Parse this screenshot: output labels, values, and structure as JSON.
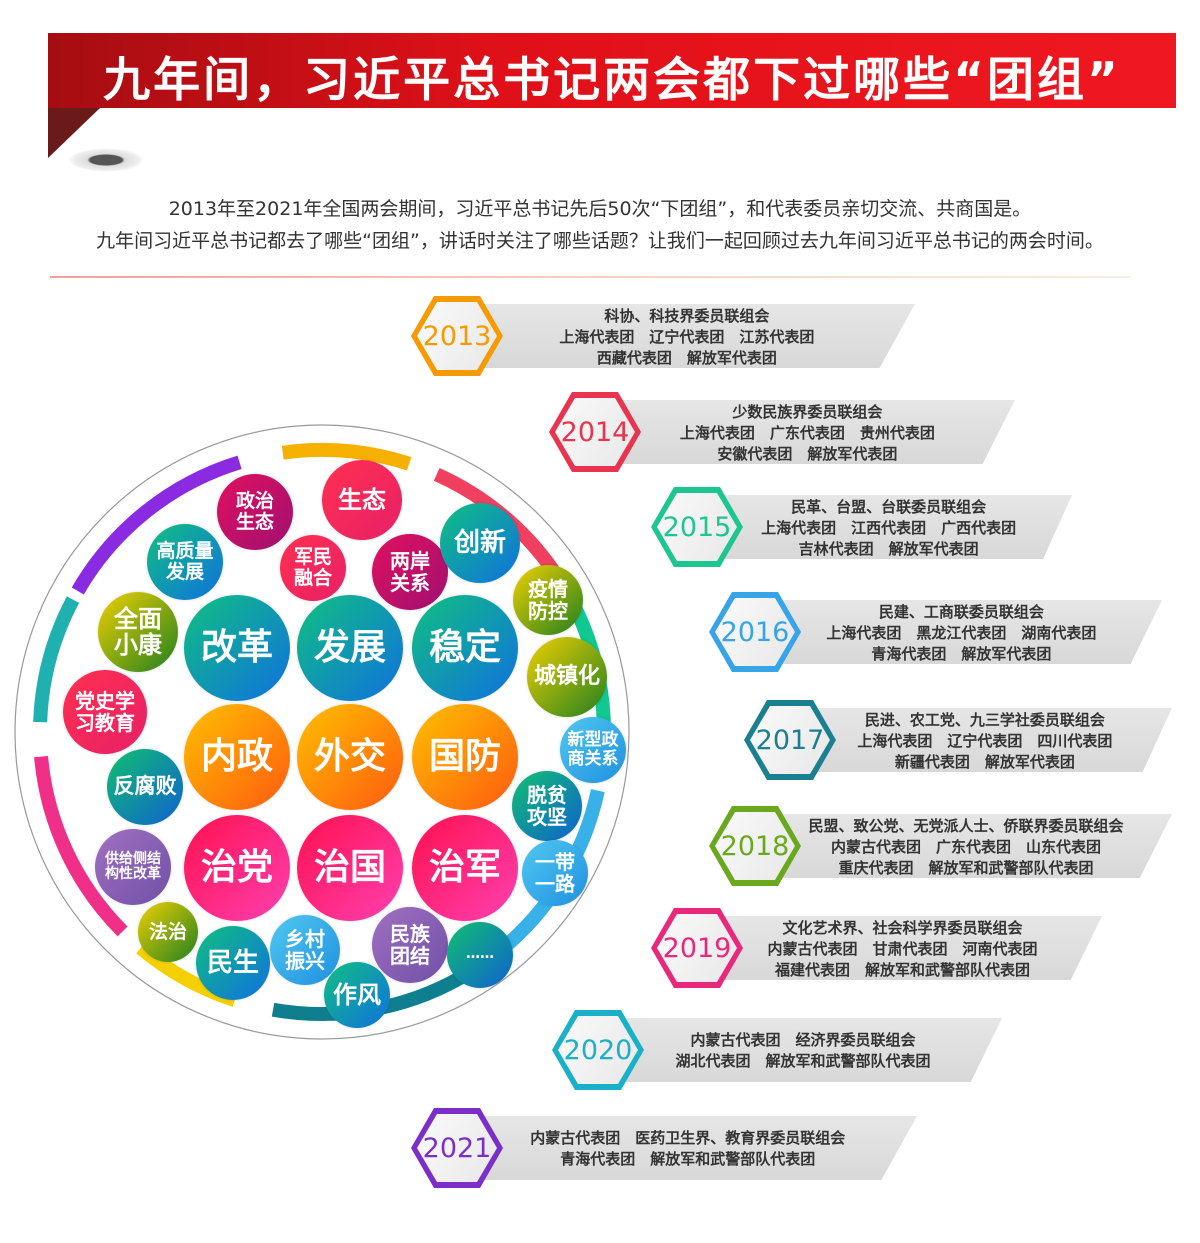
{
  "header": {
    "title": "九年间，习近平总书记两会都下过哪些“团组”"
  },
  "intro": {
    "line1": "2013年至2021年全国两会期间，习近平总书记先后50次“下团组”，和代表委员亲切交流、共商国是。",
    "line2": "九年间习近平总书记都去了哪些“团组”，讲话时关注了哪些话题？让我们一起回顾过去九年间习近平总书记的两会时间。"
  },
  "topics": [
    "政治\n生态",
    "生态",
    "高质量\n发展",
    "军民\n融合",
    "两岸\n关系",
    "创新",
    "疫情\n防控",
    "全面\n小康",
    "改革",
    "发展",
    "稳定",
    "城镇化",
    "党史学\n习教育",
    "新型政\n商关系",
    "内政",
    "外交",
    "国防",
    "反腐败",
    "脱贫\n攻坚",
    "供给侧结\n构性改革",
    "治党",
    "治国",
    "治军",
    "一带\n一路",
    "法治",
    "民生",
    "乡村\n振兴",
    "民族\n团结",
    "……",
    "作风"
  ],
  "years": [
    {
      "year": "2013",
      "color": "#f59a00",
      "lines": [
        "科协、科技界委员联组会",
        "上海代表团　辽宁代表团　江苏代表团",
        "西藏代表团　解放军代表团"
      ]
    },
    {
      "year": "2014",
      "color": "#e8344e",
      "lines": [
        "少数民族界委员联组会",
        "上海代表团　广东代表团　贵州代表团",
        "安徽代表团　解放军代表团"
      ]
    },
    {
      "year": "2015",
      "color": "#1dc690",
      "lines": [
        "民革、台盟、台联委员联组会",
        "上海代表团　江西代表团　广西代表团",
        "吉林代表团　解放军代表团"
      ]
    },
    {
      "year": "2016",
      "color": "#36a4e6",
      "lines": [
        "民建、工商联委员联组会",
        "上海代表团　黑龙江代表团　湖南代表团",
        "青海代表团　解放军代表团"
      ]
    },
    {
      "year": "2017",
      "color": "#1a7f8f",
      "lines": [
        "民进、农工党、九三学社委员联组会",
        "上海代表团　辽宁代表团　四川代表团",
        "新疆代表团　解放军代表团"
      ]
    },
    {
      "year": "2018",
      "color": "#6aa81e",
      "lines": [
        "民盟、致公党、无党派人士、侨联界委员联组会",
        "内蒙古代表团　广东代表团　山东代表团",
        "重庆代表团　解放军和武警部队代表团"
      ]
    },
    {
      "year": "2019",
      "color": "#e8287a",
      "lines": [
        "文化艺术界、社会科学界委员联组会",
        "内蒙古代表团　甘肃代表团　河南代表团",
        "福建代表团　解放军和武警部队代表团"
      ]
    },
    {
      "year": "2020",
      "color": "#1ab0c8",
      "lines": [
        "内蒙古代表团　经济界委员联组会",
        "湖北代表团　解放军和武警部队代表团"
      ]
    },
    {
      "year": "2021",
      "color": "#7b2fc8",
      "lines": [
        "内蒙古代表团　医药卫生界、教育界委员联组会",
        "青海代表团　解放军和武警部队代表团"
      ]
    }
  ]
}
